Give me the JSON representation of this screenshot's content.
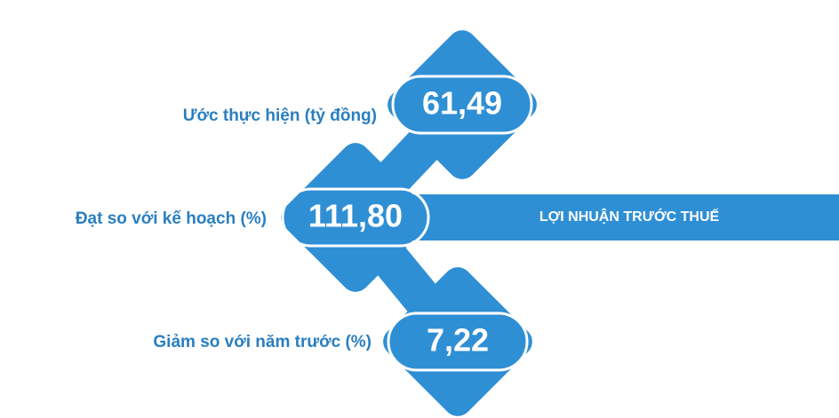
{
  "title": "LỢI NHUẬN TRƯỚC THUẾ",
  "items": [
    {
      "label": "Ước thực hiện (tỷ đồng)",
      "value": "61,49"
    },
    {
      "label": "Đạt so với kế hoạch (%)",
      "value": "111,80"
    },
    {
      "label": "Giảm so với năm trước (%)",
      "value": "7,22"
    }
  ]
}
